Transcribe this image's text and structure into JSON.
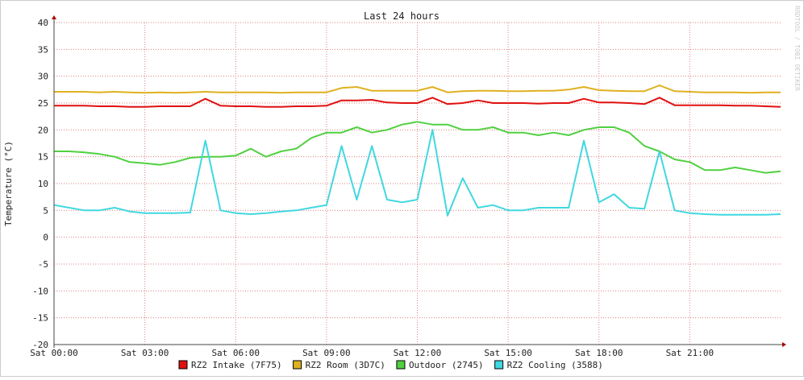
{
  "chart_data": {
    "type": "line",
    "title": "Last 24 hours",
    "y_label": "Temperature (°C)",
    "watermark": "RRDTOOL / TOBI OETIKER",
    "x": [
      0,
      0.5,
      1,
      1.5,
      2,
      2.5,
      3,
      3.5,
      4,
      4.5,
      5,
      5.5,
      6,
      6.5,
      7,
      7.5,
      8,
      8.5,
      9,
      9.5,
      10,
      10.5,
      11,
      11.5,
      12,
      12.5,
      13,
      13.5,
      14,
      14.5,
      15,
      15.5,
      16,
      16.5,
      17,
      17.5,
      18,
      18.5,
      19,
      19.5,
      20,
      20.5,
      21,
      21.5,
      22,
      22.5,
      23,
      23.5,
      24
    ],
    "xlim": [
      0,
      24
    ],
    "xticks": [
      {
        "value": 0,
        "label": "Sat 00:00"
      },
      {
        "value": 3,
        "label": "Sat 03:00"
      },
      {
        "value": 6,
        "label": "Sat 06:00"
      },
      {
        "value": 9,
        "label": "Sat 09:00"
      },
      {
        "value": 12,
        "label": "Sat 12:00"
      },
      {
        "value": 15,
        "label": "Sat 15:00"
      },
      {
        "value": 18,
        "label": "Sat 18:00"
      },
      {
        "value": 21,
        "label": "Sat 21:00"
      }
    ],
    "ylim": [
      -20,
      40
    ],
    "yticks": [
      -20,
      -15,
      -10,
      -5,
      0,
      5,
      10,
      15,
      20,
      25,
      30,
      35,
      40
    ],
    "grid": true,
    "series": [
      {
        "name": "RZ2 Intake (7F75)",
        "color": "#e01010",
        "values": [
          24.5,
          24.5,
          24.5,
          24.4,
          24.4,
          24.3,
          24.3,
          24.4,
          24.4,
          24.4,
          25.8,
          24.5,
          24.4,
          24.4,
          24.3,
          24.3,
          24.4,
          24.4,
          24.5,
          25.5,
          25.5,
          25.6,
          25.1,
          25,
          25,
          26,
          24.8,
          25,
          25.5,
          25,
          25,
          25,
          24.9,
          25,
          25,
          25.8,
          25.1,
          25.1,
          25,
          24.8,
          26,
          24.6,
          24.6,
          24.6,
          24.6,
          24.5,
          24.5,
          24.4,
          24.3
        ]
      },
      {
        "name": "RZ2 Room (3D7C)",
        "color": "#e0b020",
        "values": [
          27.1,
          27.1,
          27.1,
          27,
          27.1,
          27,
          26.9,
          27,
          26.9,
          27,
          27.1,
          27,
          27,
          27,
          27,
          26.9,
          27,
          27,
          27,
          27.8,
          28,
          27.3,
          27.3,
          27.3,
          27.3,
          28,
          27,
          27.2,
          27.3,
          27.3,
          27.2,
          27.2,
          27.3,
          27.3,
          27.5,
          28,
          27.4,
          27.3,
          27.2,
          27.2,
          28.3,
          27.2,
          27.1,
          27,
          27,
          27,
          26.9,
          27,
          27
        ]
      },
      {
        "name": "Outdoor (2745)",
        "color": "#50d040",
        "values": [
          16,
          16,
          15.8,
          15.5,
          15,
          14,
          13.8,
          13.5,
          14,
          14.8,
          15,
          15,
          15.2,
          16.5,
          15,
          16,
          16.5,
          18.5,
          19.5,
          19.5,
          20.5,
          19.5,
          20,
          21,
          21.5,
          21,
          21,
          20,
          20,
          20.5,
          19.5,
          19.5,
          19,
          19.5,
          19,
          20,
          20.5,
          20.5,
          19.5,
          17,
          16,
          14.5,
          14,
          12.5,
          12.5,
          13,
          12.5,
          12,
          12.3
        ]
      },
      {
        "name": "RZ2 Cooling (3588)",
        "color": "#40d8e0",
        "values": [
          6,
          5.5,
          5,
          5,
          5.5,
          4.8,
          4.5,
          4.5,
          4.5,
          4.6,
          18,
          5,
          4.5,
          4.3,
          4.5,
          4.8,
          5,
          5.5,
          6,
          17,
          7,
          17,
          7,
          6.5,
          7,
          20,
          4,
          11,
          5.5,
          6,
          5,
          5,
          5.5,
          5.5,
          5.5,
          18,
          6.5,
          8,
          5.5,
          5.3,
          16,
          5,
          4.5,
          4.3,
          4.2,
          4.2,
          4.2,
          4.2,
          4.3
        ]
      }
    ]
  }
}
